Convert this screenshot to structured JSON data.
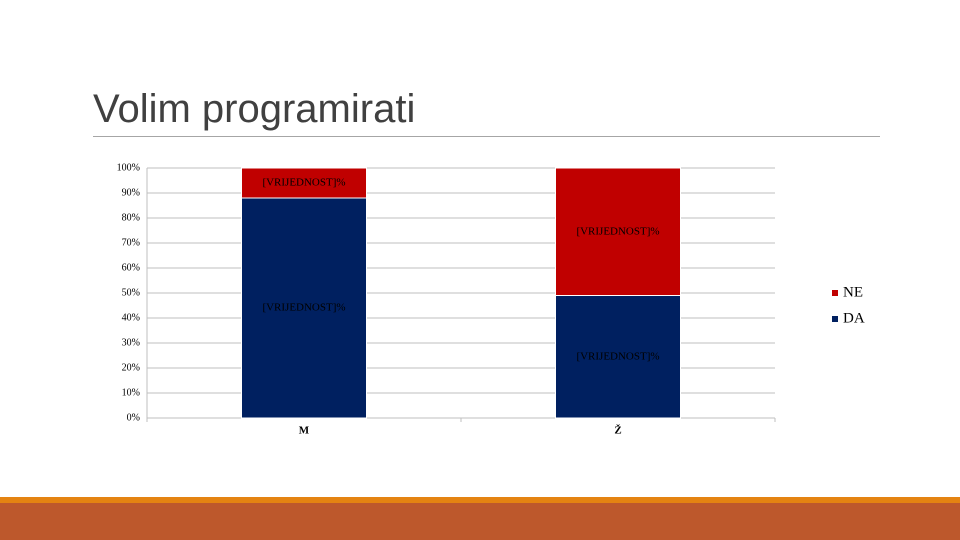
{
  "chart_data": {
    "type": "stacked-bar",
    "title": "Volim programirati",
    "categories": [
      "M",
      "Ž"
    ],
    "series": [
      {
        "name": "DA",
        "color": "#002060",
        "values": [
          88,
          49
        ],
        "value_labels": [
          "[VRIJEDNOST]%",
          "[VRIJEDNOST]%"
        ]
      },
      {
        "name": "NE",
        "color": "#c00000",
        "values": [
          12,
          51
        ],
        "value_labels": [
          "[VRIJEDNOST]%",
          "[VRIJEDNOST]%"
        ]
      }
    ],
    "ylim": [
      0,
      100
    ],
    "yticks": [
      {
        "value": 0,
        "label": "0%"
      },
      {
        "value": 10,
        "label": "10%"
      },
      {
        "value": 20,
        "label": "20%"
      },
      {
        "value": 30,
        "label": "30%"
      },
      {
        "value": 40,
        "label": "40%"
      },
      {
        "value": 50,
        "label": "50%"
      },
      {
        "value": 60,
        "label": "60%"
      },
      {
        "value": 70,
        "label": "70%"
      },
      {
        "value": 80,
        "label": "80%"
      },
      {
        "value": 90,
        "label": "90%"
      },
      {
        "value": 100,
        "label": "100%"
      }
    ],
    "grid": true,
    "legend": "right"
  }
}
